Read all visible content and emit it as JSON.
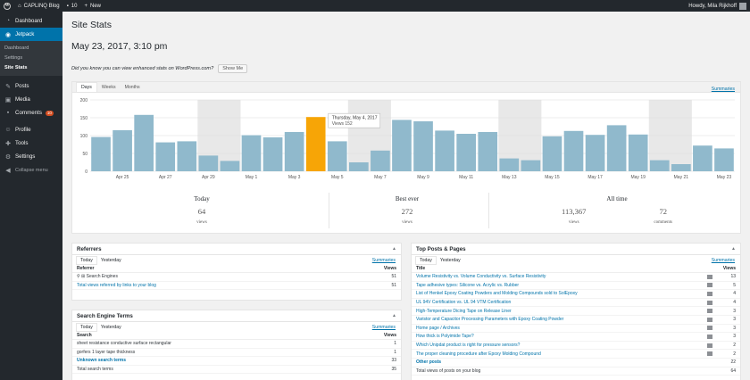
{
  "adminbar": {
    "site_name": "CAPLINQ Blog",
    "comments_count": "10",
    "new_label": "New",
    "howdy": "Howdy, Mila Rijkhoff"
  },
  "sidebar": {
    "items": [
      {
        "label": "Dashboard",
        "icon": "dashboard-icon"
      },
      {
        "label": "Jetpack",
        "icon": "jetpack-icon"
      },
      {
        "label": "Posts",
        "icon": "pin-icon"
      },
      {
        "label": "Media",
        "icon": "media-icon"
      },
      {
        "label": "Comments",
        "icon": "comment-icon",
        "badge": "10"
      },
      {
        "label": "Profile",
        "icon": "user-icon"
      },
      {
        "label": "Tools",
        "icon": "wrench-icon"
      },
      {
        "label": "Settings",
        "icon": "settings-icon"
      },
      {
        "label": "Collapse menu",
        "icon": "collapse-icon"
      }
    ],
    "jetpack_sub": [
      "Dashboard",
      "Settings",
      "Site Stats"
    ]
  },
  "page": {
    "title": "Site Stats",
    "date": "May 23, 2017, 3:10 pm",
    "notice": "Did you know you can view enhanced stats on WordPress.com?",
    "notice_button": "Show Me"
  },
  "stats": {
    "tabs": [
      "Days",
      "Weeks",
      "Months"
    ],
    "summaries_link": "Summaries",
    "tooltip_date": "Thursday, May 4, 2017",
    "tooltip_views": "Views 152",
    "today_label": "Today",
    "today_views": "64",
    "best_label": "Best ever",
    "best_views": "272",
    "alltime_label": "All time",
    "alltime_views": "113,367",
    "alltime_comments": "72",
    "views_word": "views",
    "comments_word": "comments"
  },
  "chart_data": {
    "type": "bar",
    "categories": [
      "Apr 24",
      "Apr 25",
      "Apr 26",
      "Apr 27",
      "Apr 28",
      "Apr 29",
      "Apr 30",
      "May 1",
      "May 2",
      "May 3",
      "May 4",
      "May 5",
      "May 6",
      "May 7",
      "May 8",
      "May 9",
      "May 10",
      "May 11",
      "May 12",
      "May 13",
      "May 14",
      "May 15",
      "May 16",
      "May 17",
      "May 18",
      "May 19",
      "May 20",
      "May 21",
      "May 22",
      "May 23"
    ],
    "values": [
      96,
      115,
      158,
      81,
      84,
      44,
      29,
      101,
      95,
      110,
      152,
      84,
      25,
      58,
      144,
      140,
      114,
      105,
      110,
      36,
      31,
      98,
      113,
      102,
      129,
      103,
      31,
      20,
      72,
      64
    ],
    "highlighted": "May 4",
    "ylim": [
      0,
      200
    ],
    "yticks": [
      "200",
      "150",
      "100",
      "50",
      "0"
    ],
    "xticks": [
      "Apr 25",
      "Apr 27",
      "Apr 29",
      "May 1",
      "May 3",
      "May 5",
      "May 7",
      "May 9",
      "May 11",
      "May 13",
      "May 15",
      "May 17",
      "May 19",
      "May 21",
      "May 23"
    ],
    "weekend_bands": [
      [
        "Apr 29",
        "Apr 30"
      ],
      [
        "May 6",
        "May 7"
      ],
      [
        "May 13",
        "May 14"
      ],
      [
        "May 20",
        "May 21"
      ]
    ],
    "colors": {
      "bar": "#90b9cc",
      "highlight": "#f7a506",
      "band": "#e8e8e8"
    }
  },
  "referrers": {
    "title": "Referrers",
    "tabs": [
      "Today",
      "Yesterday"
    ],
    "summaries": "Summaries",
    "col1": "Referrer",
    "col2": "Views",
    "rows": [
      {
        "label": "Search Engines",
        "views": "51"
      }
    ],
    "total_label": "Total views referred by links to your blog",
    "total": "51"
  },
  "search_terms": {
    "title": "Search Engine Terms",
    "tabs": [
      "Today",
      "Yesterday"
    ],
    "summaries": "Summaries",
    "col1": "Search",
    "col2": "Views",
    "rows": [
      {
        "label": "sheet resistance conductive surface rectangular",
        "views": "1"
      },
      {
        "label": "gorfers 1 layer tape thickness",
        "views": "1"
      },
      {
        "label": "Unknown search terms",
        "views": "33"
      }
    ],
    "total_label": "Total search terms",
    "total": "35"
  },
  "top_posts": {
    "title": "Top Posts & Pages",
    "tabs": [
      "Today",
      "Yesterday"
    ],
    "summaries": "Summaries",
    "col1": "Title",
    "col2": "Views",
    "rows": [
      {
        "label": "Volume Resistivity vs. Volume Conductivity vs. Surface Resistivity",
        "views": "13"
      },
      {
        "label": "Tape adhesive types: Silicone vs. Acrylic vs. Rubber",
        "views": "5"
      },
      {
        "label": "List of Henkel Epoxy Coating Powders and Molding Compounds sold to SolEpoxy",
        "views": "4"
      },
      {
        "label": "UL 94V Certification vs. UL 94 VTM Certification",
        "views": "4"
      },
      {
        "label": "High-Temperature Dicing Tape on Release Liner",
        "views": "3"
      },
      {
        "label": "Varistor and Capacitor Processing Parameters with Epoxy Coating Powder",
        "views": "3"
      },
      {
        "label": "Home page / Archives",
        "views": "3"
      },
      {
        "label": "How thick is Polyimide Tape?",
        "views": "3"
      },
      {
        "label": "Which Unipdat product is right for pressure sensors?",
        "views": "2"
      },
      {
        "label": "The proper cleaning procedure after Epoxy Molding Compound",
        "views": "2"
      },
      {
        "label": "Other posts",
        "views": "22"
      }
    ],
    "total_label": "Total views of posts on your blog",
    "total": "64"
  }
}
